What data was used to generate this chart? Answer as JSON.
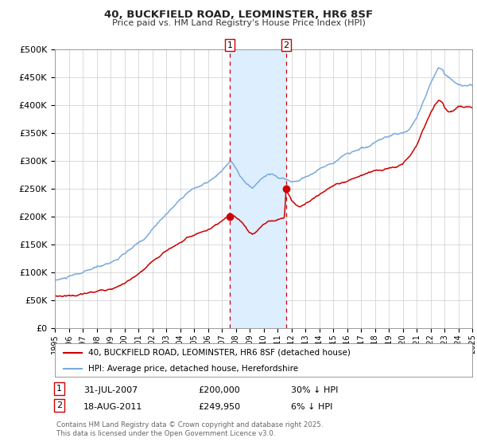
{
  "title1": "40, BUCKFIELD ROAD, LEOMINSTER, HR6 8SF",
  "title2": "Price paid vs. HM Land Registry's House Price Index (HPI)",
  "ylabel_ticks": [
    "£0",
    "£50K",
    "£100K",
    "£150K",
    "£200K",
    "£250K",
    "£300K",
    "£350K",
    "£400K",
    "£450K",
    "£500K"
  ],
  "y_values": [
    0,
    50000,
    100000,
    150000,
    200000,
    250000,
    300000,
    350000,
    400000,
    450000,
    500000
  ],
  "x_start_year": 1995,
  "x_end_year": 2025,
  "hpi_color": "#7aabdb",
  "price_color": "#cc0000",
  "marker_color": "#cc0000",
  "vline_color": "#cc0000",
  "shade_color": "#ddeeff",
  "transaction1_date": 2007.58,
  "transaction1_price": 200000,
  "transaction2_date": 2011.63,
  "transaction2_price": 249950,
  "legend1": "40, BUCKFIELD ROAD, LEOMINSTER, HR6 8SF (detached house)",
  "legend2": "HPI: Average price, detached house, Herefordshire",
  "table_row1": [
    "1",
    "31-JUL-2007",
    "£200,000",
    "30% ↓ HPI"
  ],
  "table_row2": [
    "2",
    "18-AUG-2011",
    "£249,950",
    "6% ↓ HPI"
  ],
  "footnote": "Contains HM Land Registry data © Crown copyright and database right 2025.\nThis data is licensed under the Open Government Licence v3.0.",
  "background_color": "#ffffff",
  "plot_bg_color": "#ffffff",
  "grid_color": "#cccccc"
}
